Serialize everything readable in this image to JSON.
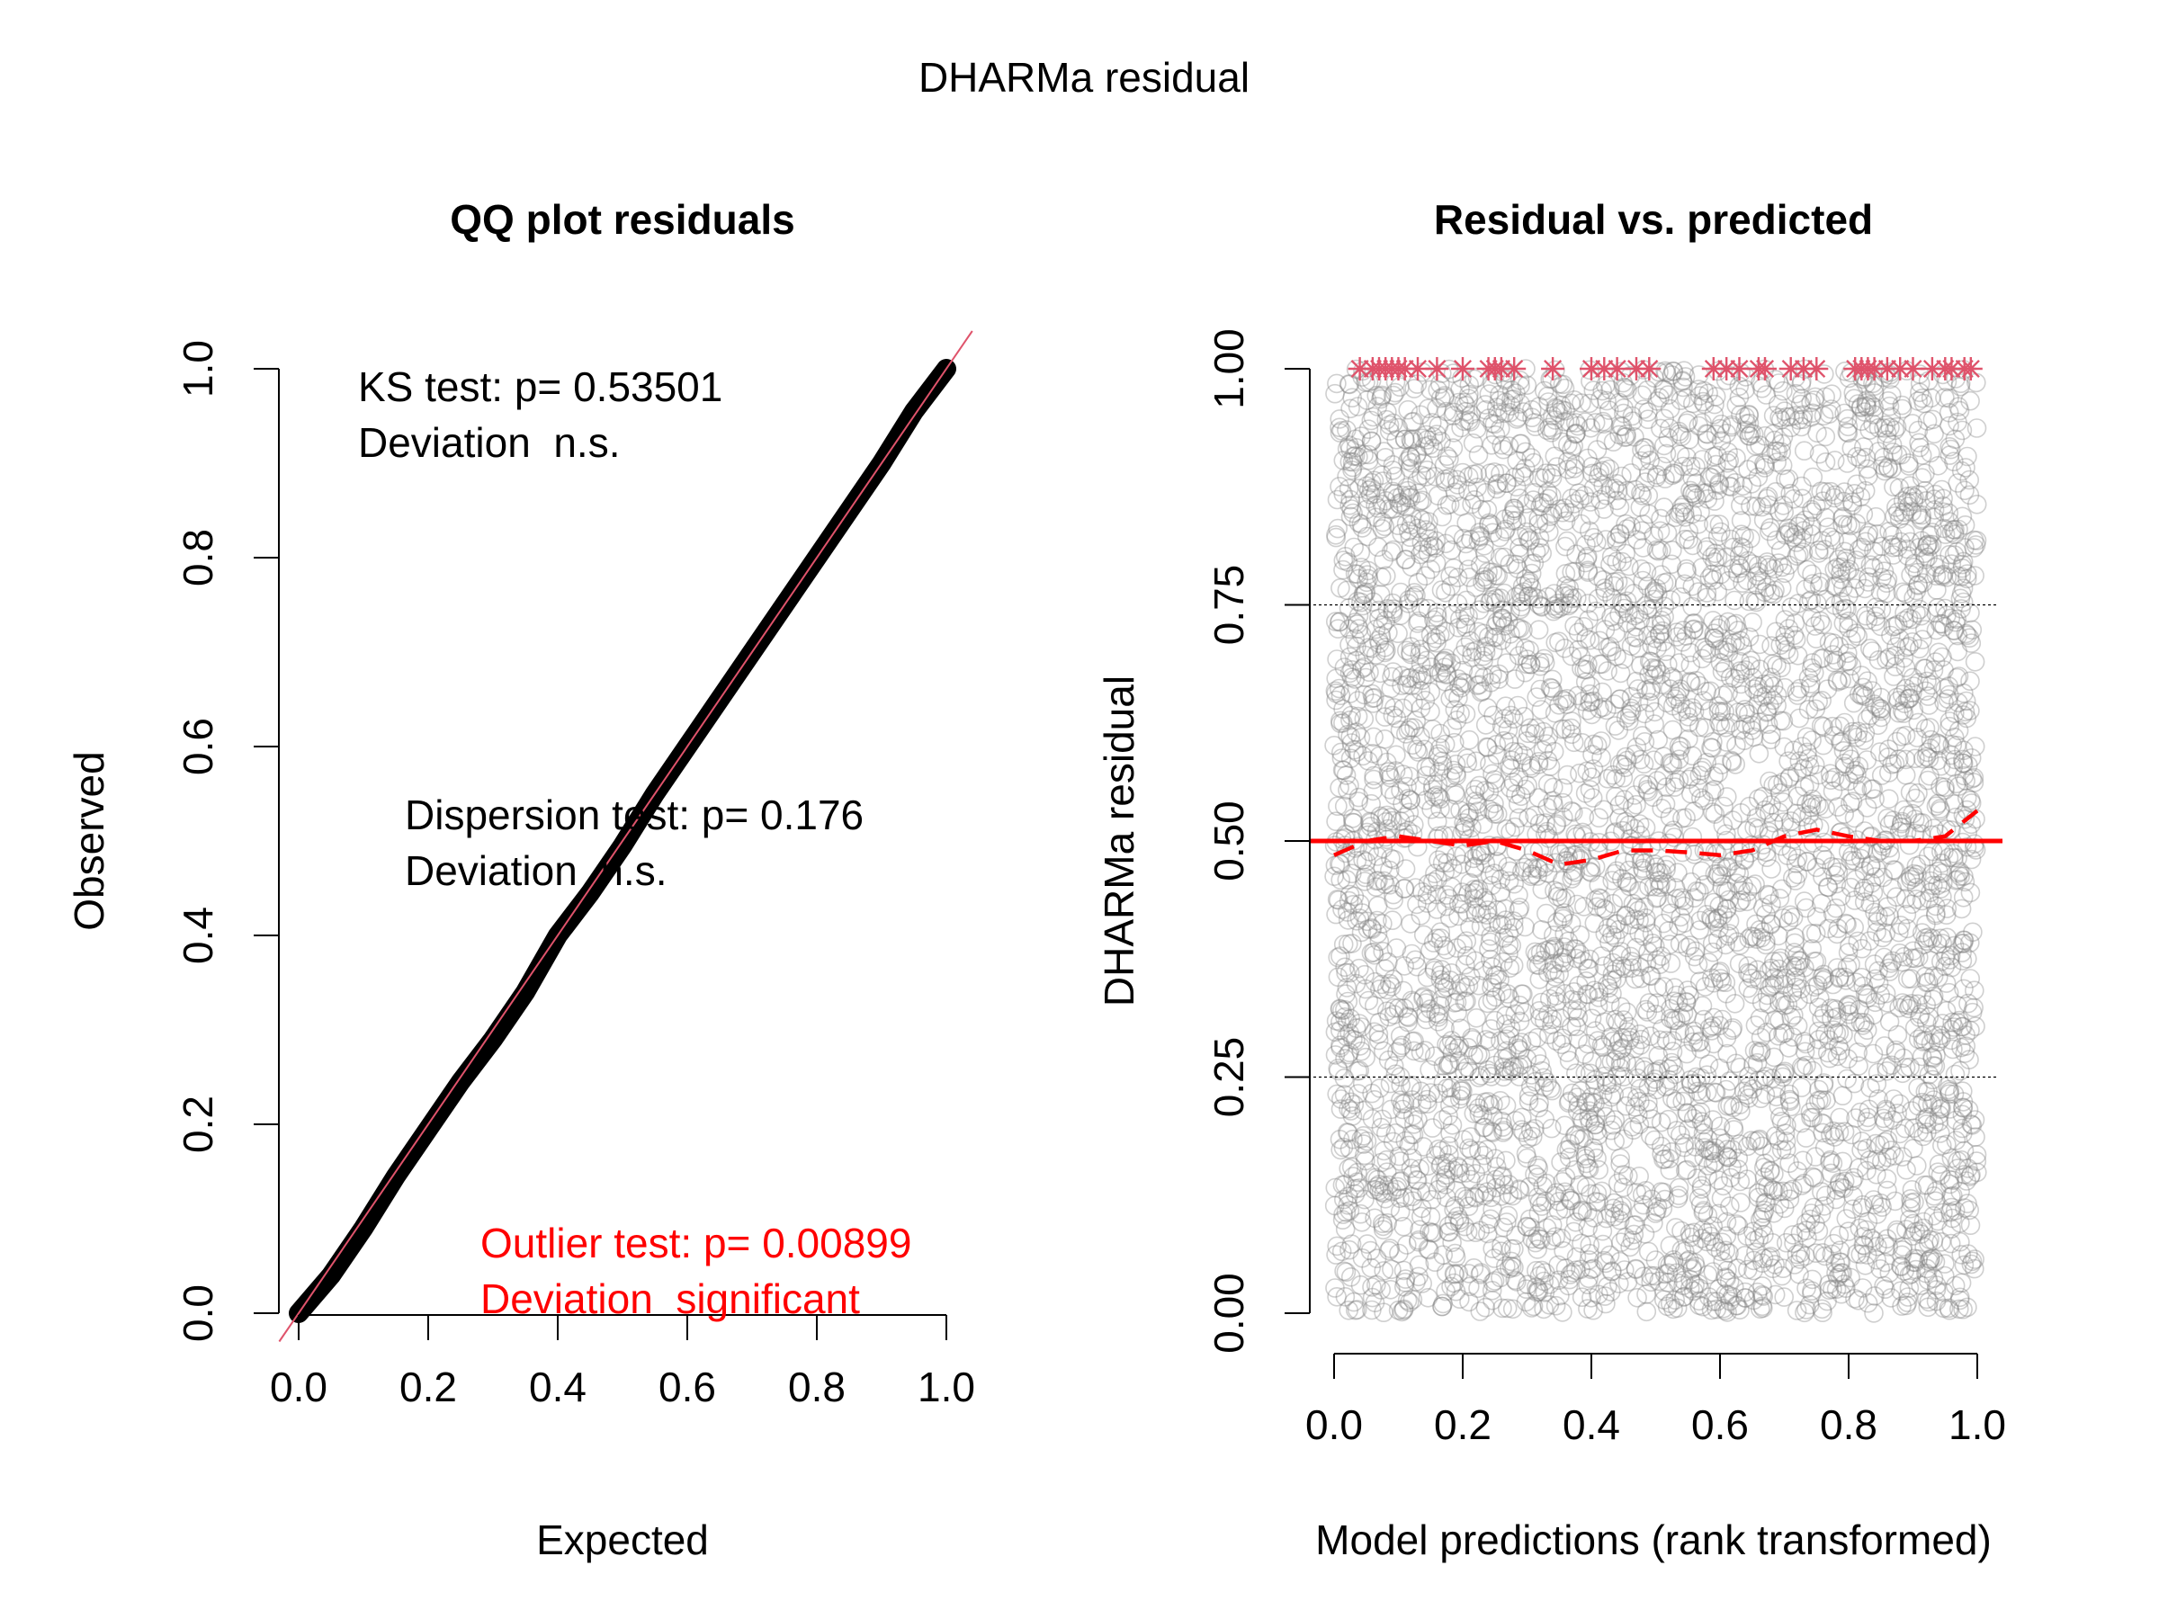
{
  "figure": {
    "title": "DHARMa residual"
  },
  "chart_data": [
    {
      "type": "scatter",
      "subtype": "qq",
      "title": "QQ plot residuals",
      "xlabel": "Expected",
      "ylabel": "Observed",
      "xlim": [
        0,
        1
      ],
      "ylim": [
        0,
        1
      ],
      "x_ticks": [
        "0.0",
        "0.2",
        "0.4",
        "0.6",
        "0.8",
        "1.0"
      ],
      "y_ticks": [
        "0.0",
        "0.2",
        "0.4",
        "0.6",
        "0.8",
        "1.0"
      ],
      "reference_line": {
        "slope": 1,
        "intercept": 0,
        "color": "#DF536B"
      },
      "points_color": "#000000",
      "series": [
        {
          "x": [
            0.0,
            0.05,
            0.1,
            0.15,
            0.2,
            0.25,
            0.3,
            0.35,
            0.4,
            0.45,
            0.5,
            0.55,
            0.6,
            0.65,
            0.7,
            0.75,
            0.8,
            0.85,
            0.9,
            0.95,
            1.0
          ],
          "y": [
            0.0,
            0.04,
            0.09,
            0.145,
            0.195,
            0.245,
            0.29,
            0.34,
            0.4,
            0.445,
            0.495,
            0.55,
            0.6,
            0.65,
            0.7,
            0.75,
            0.8,
            0.85,
            0.9,
            0.955,
            1.0
          ]
        }
      ],
      "annotations": [
        {
          "lines": [
            "KS test: p= 0.53501",
            "Deviation  n.s."
          ],
          "color": "#000000"
        },
        {
          "lines": [
            "Dispersion test: p= 0.176",
            "Deviation  n.s."
          ],
          "color": "#000000"
        },
        {
          "lines": [
            "Outlier test: p= 0.00899",
            "Deviation  significant"
          ],
          "color": "#FF0000"
        }
      ]
    },
    {
      "type": "scatter",
      "title": "Residual vs. predicted",
      "xlabel": "Model predictions (rank transformed)",
      "ylabel": "DHARMa residual",
      "xlim": [
        0,
        1
      ],
      "ylim": [
        0,
        1
      ],
      "x_ticks": [
        "0.0",
        "0.2",
        "0.4",
        "0.6",
        "0.8",
        "1.0"
      ],
      "y_ticks": [
        "0.00",
        "0.25",
        "0.50",
        "0.75",
        "1.00"
      ],
      "horizontal_guides": [
        0.25,
        0.5,
        0.75
      ],
      "points_color": "#808080",
      "point_count": 5000,
      "outliers": {
        "color": "#DF536B",
        "y": 1.0,
        "x": [
          0.04,
          0.06,
          0.07,
          0.08,
          0.09,
          0.1,
          0.11,
          0.13,
          0.16,
          0.2,
          0.24,
          0.25,
          0.26,
          0.28,
          0.34,
          0.4,
          0.42,
          0.44,
          0.47,
          0.49,
          0.59,
          0.61,
          0.63,
          0.66,
          0.67,
          0.71,
          0.73,
          0.75,
          0.81,
          0.82,
          0.83,
          0.84,
          0.86,
          0.88,
          0.9,
          0.93,
          0.95,
          0.96,
          0.98,
          0.99
        ]
      },
      "median_line": {
        "y": 0.5,
        "color": "#FF0000"
      },
      "quantile_smooth": {
        "color": "#FF0000",
        "x": [
          0.0,
          0.05,
          0.1,
          0.15,
          0.2,
          0.25,
          0.3,
          0.35,
          0.4,
          0.45,
          0.5,
          0.55,
          0.6,
          0.65,
          0.7,
          0.75,
          0.8,
          0.85,
          0.9,
          0.95,
          1.0
        ],
        "y": [
          0.485,
          0.5,
          0.505,
          0.5,
          0.495,
          0.5,
          0.49,
          0.475,
          0.48,
          0.49,
          0.49,
          0.488,
          0.485,
          0.49,
          0.505,
          0.512,
          0.505,
          0.5,
          0.5,
          0.505,
          0.532
        ]
      }
    }
  ]
}
